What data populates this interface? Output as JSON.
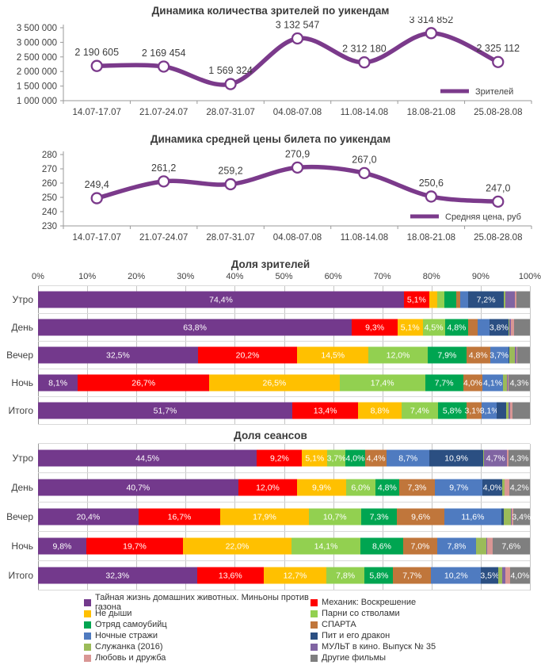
{
  "chart_data": [
    {
      "type": "line",
      "title": "Динамика количества зрителей по уикендам",
      "legend_label": "Зрителей",
      "line_color": "#7B3A8B",
      "categories": [
        "14.07-17.07",
        "21.07-24.07",
        "28.07-31.07",
        "04.08-07.08",
        "11.08-14.08",
        "18.08-21.08",
        "25.08-28.08"
      ],
      "values": [
        2190605,
        2169454,
        1569324,
        3132547,
        2312180,
        3314852,
        2325112
      ],
      "point_labels": [
        "2 190 605",
        "2 169 454",
        "1 569 324",
        "3 132 547",
        "2 312 180",
        "3 314 852",
        "2 325 112"
      ],
      "y_min": 1000000,
      "y_max": 3500000,
      "y_ticks": [
        "3 500 000",
        "3 000 000",
        "2 500 000",
        "2 000 000",
        "1 500 000",
        "1 000 000"
      ],
      "grid": false,
      "legend_position": "inside-bottom-right"
    },
    {
      "type": "line",
      "title": "Динамика средней цены билета по уикендам",
      "legend_label": "Средняя цена, руб",
      "line_color": "#7B3A8B",
      "categories": [
        "14.07-17.07",
        "21.07-24.07",
        "28.07-31.07",
        "04.08-07.08",
        "11.08-14.08",
        "18.08-21.08",
        "25.08-28.08"
      ],
      "values": [
        249.4,
        261.2,
        259.2,
        270.9,
        267.0,
        250.6,
        247.0
      ],
      "point_labels": [
        "249,4",
        "261,2",
        "259,2",
        "270,9",
        "267,0",
        "250,6",
        "247,0"
      ],
      "y_min": 230,
      "y_max": 280,
      "y_ticks": [
        "280",
        "270",
        "260",
        "250",
        "240",
        "230"
      ],
      "grid": false,
      "legend_position": "inside-bottom-right"
    },
    {
      "type": "bar",
      "orientation": "horizontal-stacked",
      "title": "Доля зрителей",
      "x_ticks": [
        "0%",
        "10%",
        "20%",
        "30%",
        "40%",
        "50%",
        "60%",
        "70%",
        "80%",
        "90%",
        "100%"
      ],
      "x_range": [
        0,
        100
      ],
      "rows": [
        {
          "name": "Утро",
          "values": [
            74.4,
            5.1,
            1.7,
            1.4,
            2.4,
            0.8,
            1.7,
            7.2,
            0.3,
            2.0,
            0.3,
            2.7
          ],
          "labels": [
            "74,4%",
            "5,1%",
            "",
            "",
            "",
            "",
            "",
            "7,2%",
            "",
            "",
            "",
            ""
          ]
        },
        {
          "name": "День",
          "values": [
            63.8,
            9.3,
            5.1,
            4.5,
            4.8,
            1.9,
            2.4,
            3.8,
            0.3,
            0.3,
            0.6,
            3.2
          ],
          "labels": [
            "63,8%",
            "9,3%",
            "5,1%",
            "4,5%",
            "4,8%",
            "",
            "",
            "3,8%",
            "",
            "",
            "",
            ""
          ]
        },
        {
          "name": "Вечер",
          "values": [
            32.5,
            20.2,
            14.5,
            12.0,
            7.9,
            4.8,
            3.7,
            0.3,
            1.1,
            0.2,
            0.2,
            2.6
          ],
          "labels": [
            "32,5%",
            "20,2%",
            "14,5%",
            "12,0%",
            "7,9%",
            "4,8%",
            "3,7%",
            "",
            "",
            "",
            "",
            ""
          ]
        },
        {
          "name": "Ночь",
          "values": [
            8.1,
            26.7,
            26.5,
            17.4,
            7.7,
            4.0,
            4.1,
            0.1,
            0.7,
            0.2,
            0.2,
            4.3
          ],
          "labels": [
            "8,1%",
            "26,7%",
            "26,5%",
            "17,4%",
            "7,7%",
            "4,0%",
            "4,1%",
            "",
            "",
            "",
            "",
            "4,3%"
          ]
        },
        {
          "name": "Итого",
          "values": [
            51.7,
            13.4,
            8.8,
            7.4,
            5.8,
            3.1,
            3.1,
            1.9,
            0.4,
            0.4,
            0.4,
            3.6
          ],
          "labels": [
            "51,7%",
            "13,4%",
            "8,8%",
            "7,4%",
            "5,8%",
            "3,1%",
            "3,1%",
            "",
            "",
            "",
            "",
            ""
          ]
        }
      ]
    },
    {
      "type": "bar",
      "orientation": "horizontal-stacked",
      "title": "Доля сеансов",
      "x_ticks": [],
      "x_range": [
        0,
        100
      ],
      "rows": [
        {
          "name": "Утро",
          "values": [
            44.5,
            9.2,
            5.1,
            3.7,
            4.0,
            4.4,
            8.7,
            10.9,
            0.2,
            4.7,
            0.3,
            4.3
          ],
          "labels": [
            "44,5%",
            "9,2%",
            "5,1%",
            "3,7%",
            "4,0%",
            "4,4%",
            "8,7%",
            "10,9%",
            "",
            "4,7%",
            "",
            "4,3%"
          ]
        },
        {
          "name": "День",
          "values": [
            40.7,
            12.0,
            9.9,
            6.0,
            4.8,
            7.3,
            9.7,
            4.0,
            0.4,
            0.1,
            0.9,
            4.2
          ],
          "labels": [
            "40,7%",
            "12,0%",
            "9,9%",
            "6,0%",
            "4,8%",
            "7,3%",
            "9,7%",
            "4,0%",
            "",
            "",
            "",
            "4,2%"
          ]
        },
        {
          "name": "Вечер",
          "values": [
            20.4,
            16.7,
            17.9,
            10.7,
            7.3,
            9.6,
            11.6,
            0.5,
            1.5,
            0.1,
            0.3,
            3.4
          ],
          "labels": [
            "20,4%",
            "16,7%",
            "17,9%",
            "10,7%",
            "7,3%",
            "9,6%",
            "11,6%",
            "",
            "",
            "",
            "",
            "3,4%"
          ]
        },
        {
          "name": "Ночь",
          "values": [
            9.8,
            19.7,
            22.0,
            14.1,
            8.6,
            7.0,
            7.8,
            0.1,
            2.0,
            0.2,
            1.1,
            7.6
          ],
          "labels": [
            "9,8%",
            "19,7%",
            "22,0%",
            "14,1%",
            "8,6%",
            "7,0%",
            "7,8%",
            "",
            "",
            "",
            "",
            "7,6%"
          ]
        },
        {
          "name": "Итого",
          "values": [
            32.3,
            13.6,
            12.7,
            7.8,
            5.8,
            7.7,
            10.2,
            3.5,
            0.8,
            0.6,
            1.0,
            4.0
          ],
          "labels": [
            "32,3%",
            "13,6%",
            "12,7%",
            "7,8%",
            "5,8%",
            "7,7%",
            "10,2%",
            "3,5%",
            "",
            "",
            "",
            "4,0%"
          ]
        }
      ]
    }
  ],
  "stack_series": [
    {
      "name": "Тайная жизнь домашних животных. Миньоны против газона",
      "color": "#73398C"
    },
    {
      "name": "Механик: Воскрешение",
      "color": "#FF0000"
    },
    {
      "name": "Не дыши",
      "color": "#FFC000"
    },
    {
      "name": "Парни со стволами",
      "color": "#92D050"
    },
    {
      "name": "Отряд самоубийц",
      "color": "#00A551"
    },
    {
      "name": "СПАРТА",
      "color": "#C0763B"
    },
    {
      "name": "Ночные стражи",
      "color": "#4F7BC0"
    },
    {
      "name": "Пит и его дракон",
      "color": "#2B4F82"
    },
    {
      "name": "Служанка (2016)",
      "color": "#9BBB59"
    },
    {
      "name": "МУЛЬТ в кино. Выпуск № 35",
      "color": "#8064A2"
    },
    {
      "name": "Любовь и дружба",
      "color": "#D99694"
    },
    {
      "name": "Другие фильмы",
      "color": "#7F7F7F"
    }
  ],
  "legend": {
    "columns": [
      [
        {
          "label": "Тайная жизнь домашних животных. Миньоны против газона",
          "color": "#73398C"
        },
        {
          "label": "Не дыши",
          "color": "#FFC000"
        },
        {
          "label": "Отряд самоубийц",
          "color": "#00A551"
        },
        {
          "label": "Ночные стражи",
          "color": "#4F7BC0"
        },
        {
          "label": "Служанка (2016)",
          "color": "#9BBB59"
        },
        {
          "label": "Любовь и дружба",
          "color": "#D99694"
        }
      ],
      [
        {
          "label": "Механик: Воскрешение",
          "color": "#FF0000"
        },
        {
          "label": "Парни со стволами",
          "color": "#92D050"
        },
        {
          "label": "СПАРТА",
          "color": "#C0763B"
        },
        {
          "label": "Пит и его дракон",
          "color": "#2B4F82"
        },
        {
          "label": "МУЛЬТ в кино. Выпуск № 35",
          "color": "#8064A2"
        },
        {
          "label": "Другие фильмы",
          "color": "#7F7F7F"
        }
      ]
    ]
  }
}
